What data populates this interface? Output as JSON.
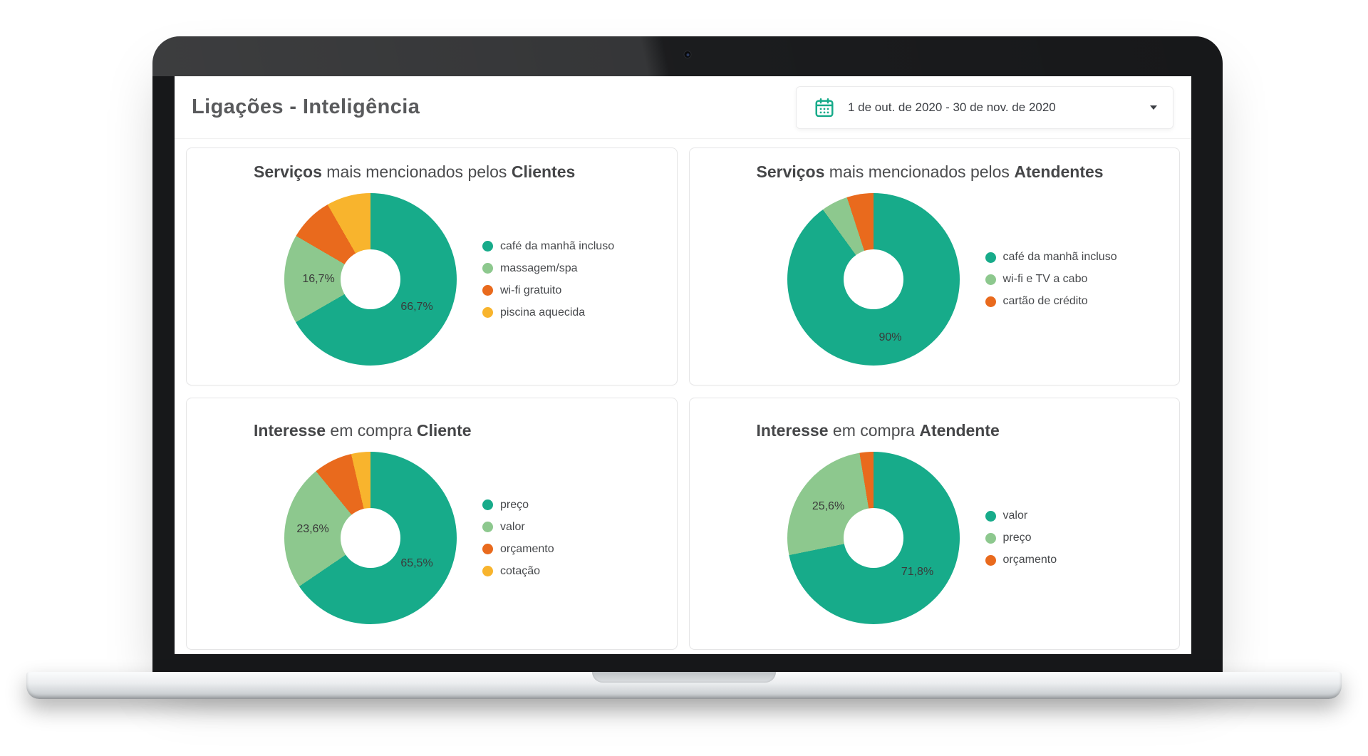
{
  "header": {
    "title": "Ligações - Inteligência",
    "date_picker": {
      "value": "1 de out. de 2020 - 30 de nov. de 2020"
    }
  },
  "theme": {
    "teal": "#17AB8A",
    "light_green": "#8DC88E",
    "orange": "#E96A1D",
    "yellow": "#F8B42D",
    "title_gray": "#595A5C"
  },
  "chart_data": [
    {
      "type": "pie",
      "donut": true,
      "legend_position": "right",
      "title": "Serviços mais mencionados pelos Clientes",
      "title_parts": {
        "b1": "Serviços",
        "mid": " mais mencionados pelos ",
        "b2": "Clientes"
      },
      "labels": [
        "café da manhã incluso",
        "massagem/spa",
        "wi-fi gratuito",
        "piscina aquecida"
      ],
      "values": [
        66.7,
        16.7,
        8.3,
        8.3
      ],
      "colors": [
        "#17AB8A",
        "#8DC88E",
        "#E96A1D",
        "#F8B42D"
      ],
      "slice_labels": [
        "66,7%",
        "16,7%"
      ]
    },
    {
      "type": "pie",
      "donut": true,
      "legend_position": "right",
      "title": "Serviços mais mencionados pelos Atendentes",
      "title_parts": {
        "b1": "Serviços",
        "mid": " mais mencionados pelos ",
        "b2": "Atendentes"
      },
      "labels": [
        "café da manhã incluso",
        "wi-fi e TV a cabo",
        "cartão de crédito"
      ],
      "values": [
        90,
        5,
        5
      ],
      "colors": [
        "#17AB8A",
        "#8DC88E",
        "#E96A1D"
      ],
      "slice_labels": [
        "90%"
      ]
    },
    {
      "type": "pie",
      "donut": true,
      "legend_position": "right",
      "title": "Interesse em compra Cliente",
      "title_parts": {
        "b1": "Interesse",
        "mid": " em compra ",
        "b2": "Cliente"
      },
      "labels": [
        "preço",
        "valor",
        "orçamento",
        "cotação"
      ],
      "values": [
        65.5,
        23.6,
        7.3,
        3.6
      ],
      "colors": [
        "#17AB8A",
        "#8DC88E",
        "#E96A1D",
        "#F8B42D"
      ],
      "slice_labels": [
        "65,5%",
        "23,6%"
      ]
    },
    {
      "type": "pie",
      "donut": true,
      "legend_position": "right",
      "title": "Interesse em compra Atendente",
      "title_parts": {
        "b1": "Interesse",
        "mid": " em compra ",
        "b2": "Atendente"
      },
      "labels": [
        "valor",
        "preço",
        "orçamento"
      ],
      "values": [
        71.8,
        25.6,
        2.6
      ],
      "colors": [
        "#17AB8A",
        "#8DC88E",
        "#E96A1D"
      ],
      "slice_labels": [
        "71,8%",
        "25,6%"
      ]
    }
  ]
}
